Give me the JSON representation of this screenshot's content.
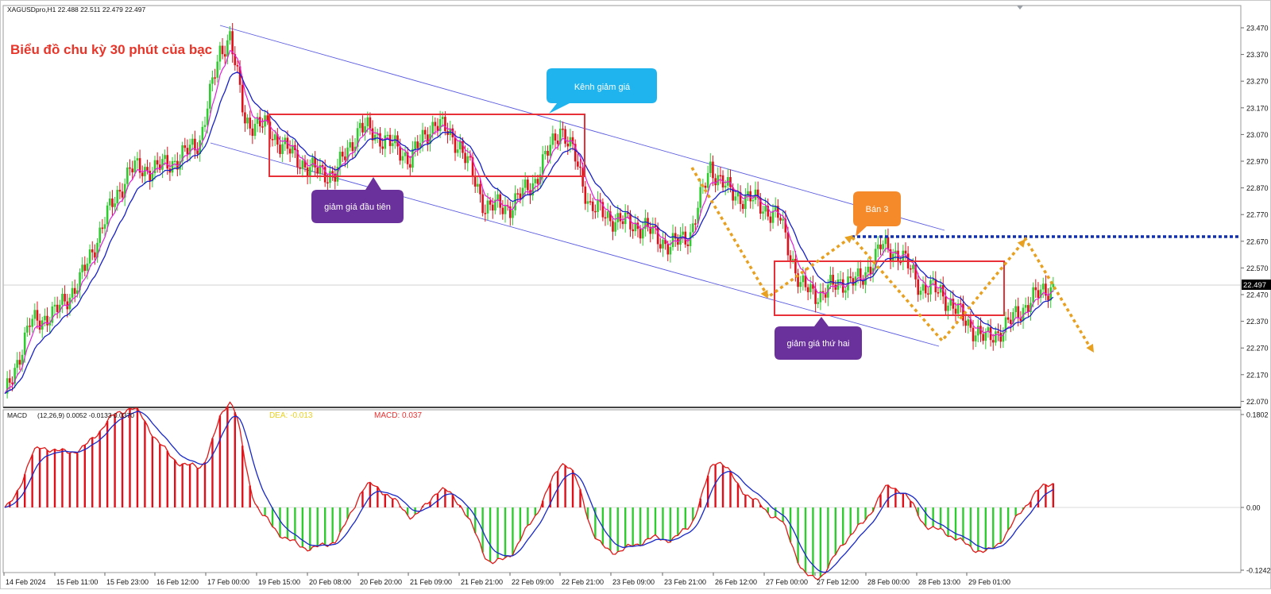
{
  "chart_window": {
    "symbol_header": "XAGUSDpro,H1  22.488 22.511 22.479 22.497"
  },
  "main_chart": {
    "title": "Biểu đồ chu kỳ 30 phút của bạc",
    "current_price_label": "22.497",
    "price_ticks": [
      "23.470",
      "23.370",
      "23.270",
      "23.170",
      "23.070",
      "22.970",
      "22.870",
      "22.770",
      "22.670",
      "22.570",
      "22.470",
      "22.370",
      "22.270",
      "22.170",
      "22.070"
    ],
    "callouts": {
      "channel": "Kênh giảm giá",
      "first_drop": "giảm giá đầu tiên",
      "sell": "Bán 3",
      "second_drop": "giảm giá thứ hai"
    }
  },
  "macd_panel": {
    "name": "MACD",
    "params": "(12,26,9) 0.0052 -0.0133 0.0370",
    "dea_label": "DEA: -0.013",
    "macd_label": "MACD: 0.037",
    "ticks": [
      "0.1802",
      "0.00",
      "-0.1242"
    ]
  },
  "time_axis": [
    "14 Feb 2024",
    "15 Feb 11:00",
    "15 Feb 23:00",
    "16 Feb 12:00",
    "17 Feb 00:00",
    "19 Feb 15:00",
    "20 Feb 08:00",
    "20 Feb 20:00",
    "21 Feb 09:00",
    "21 Feb 21:00",
    "22 Feb 09:00",
    "22 Feb 21:00",
    "23 Feb 09:00",
    "23 Feb 21:00",
    "26 Feb 12:00",
    "27 Feb 00:00",
    "27 Feb 12:00",
    "28 Feb 00:00",
    "28 Feb 13:00",
    "29 Feb 01:00"
  ],
  "colors": {
    "bull": "#2fcc2f",
    "bear": "#e0101a",
    "ma_fast": "#e020d8",
    "ma_slow": "#1820c8",
    "channel": "#5a5ae0",
    "box": "#e83038",
    "dotted_orange": "#e8a020",
    "dotted_blue": "#1030b0",
    "macd_line": "#e01818",
    "signal_line": "#1828c8",
    "callout_blue": "#20b4ee",
    "callout_purple": "#6a309c",
    "callout_orange": "#f58a2a"
  },
  "chart_data": {
    "type": "line",
    "title": "Biểu đồ chu kỳ 30 phút của bạc",
    "ylim": [
      22.02,
      23.52
    ],
    "series": [
      {
        "name": "XAGUSDpro,H1",
        "x": [
          "14 Feb 2024",
          "15 Feb 11:00",
          "15 Feb 23:00",
          "16 Feb 12:00",
          "17 Feb 00:00",
          "19 Feb 15:00",
          "20 Feb 08:00",
          "20 Feb 20:00",
          "21 Feb 09:00",
          "21 Feb 21:00",
          "22 Feb 09:00",
          "22 Feb 21:00",
          "23 Feb 09:00",
          "23 Feb 21:00",
          "26 Feb 12:00",
          "27 Feb 00:00",
          "27 Feb 12:00",
          "28 Feb 00:00",
          "28 Feb 13:00",
          "29 Feb 01:00"
        ],
        "values": [
          22.36,
          22.62,
          22.9,
          22.95,
          23.38,
          23.1,
          22.93,
          23.07,
          23.1,
          22.86,
          23.08,
          22.75,
          22.72,
          22.95,
          22.8,
          22.5,
          22.66,
          22.48,
          22.3,
          22.45
        ]
      }
    ],
    "macd": {
      "params": "(12,26,9)",
      "macd": 0.037,
      "dea": -0.013,
      "ylim": [
        -0.1242,
        0.1802
      ]
    }
  }
}
